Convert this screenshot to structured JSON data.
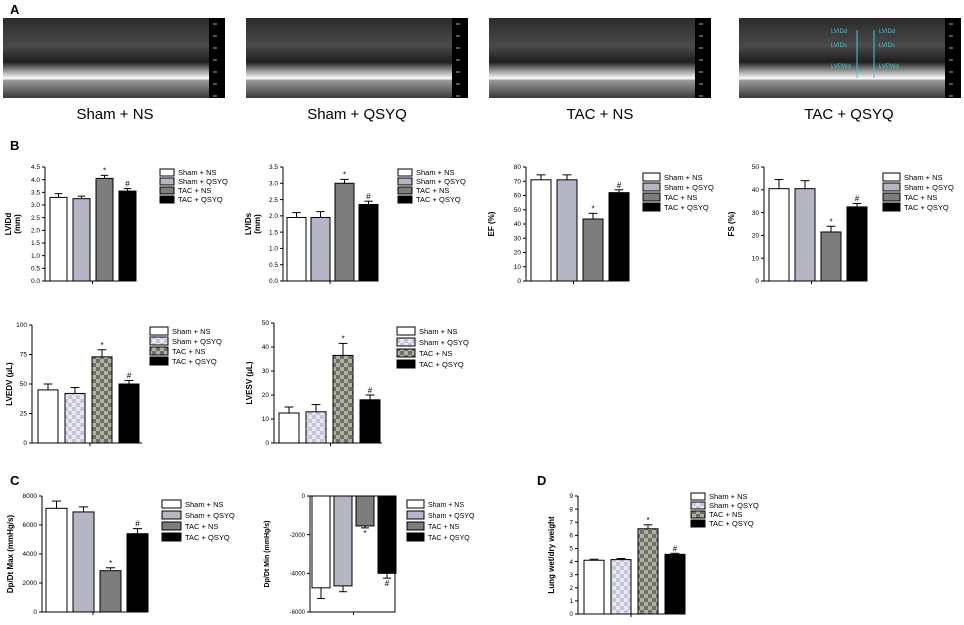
{
  "panels": {
    "a": "A",
    "b": "B",
    "c": "C",
    "d": "D"
  },
  "echo_panels": [
    {
      "title": "Sham + NS"
    },
    {
      "title": "Sham + QSYQ"
    },
    {
      "title": "TAC + NS"
    },
    {
      "title": "TAC + QSYQ",
      "overlay_labels": [
        "LVIDd",
        "LVIDs",
        "LVIDs",
        "LVIDd",
        "LVPWd",
        "LVPWd"
      ]
    }
  ],
  "colors": {
    "sham_ns": "#ffffff",
    "sham_qsyq": "#b4b6c4",
    "tac_ns": "#7d7d7d",
    "tac_qsyq": "#000000"
  },
  "chart_data": [
    {
      "type": "bar",
      "ylabel": "LVIDd\n(mm)",
      "ylim": [
        0,
        4.5
      ],
      "ticks": [
        "0.0",
        "0.5",
        "1.0",
        "1.5",
        "2.0",
        "2.5",
        "3.0",
        "3.5",
        "4.0",
        "4.5"
      ],
      "categories": [
        "Sham + NS",
        "Sham + QSYQ",
        "TAC + NS",
        "TAC + QSYQ"
      ],
      "values": [
        3.3,
        3.25,
        4.05,
        3.55
      ],
      "errors": [
        0.15,
        0.1,
        0.12,
        0.1
      ],
      "marks": [
        "",
        "",
        "*",
        "#"
      ],
      "legend": [
        "Sham + NS",
        "Sham + QSYQ",
        "TAC + NS",
        "TAC + QSYQ"
      ]
    },
    {
      "type": "bar",
      "ylabel": "LVIDs\n(mm)",
      "ylim": [
        0,
        3.5
      ],
      "ticks": [
        "0.0",
        "0.5",
        "1.0",
        "1.5",
        "2.0",
        "2.5",
        "3.0",
        "3.5"
      ],
      "categories": [
        "Sham + NS",
        "Sham + QSYQ",
        "TAC + NS",
        "TAC + QSYQ"
      ],
      "values": [
        1.95,
        1.95,
        3.0,
        2.35
      ],
      "errors": [
        0.15,
        0.18,
        0.12,
        0.1
      ],
      "marks": [
        "",
        "",
        "*",
        "#"
      ],
      "legend": [
        "Sham + NS",
        "Sham + QSYQ",
        "TAC + NS",
        "TAC + QSYQ"
      ]
    },
    {
      "type": "bar",
      "ylabel": "EF (%)",
      "ylim": [
        0,
        80
      ],
      "ticks": [
        "0",
        "10",
        "20",
        "30",
        "40",
        "50",
        "60",
        "70",
        "80"
      ],
      "categories": [
        "Sham + NS",
        "Sham + QSYQ",
        "TAC + NS",
        "TAC + QSYQ"
      ],
      "values": [
        71,
        71,
        43.5,
        62
      ],
      "errors": [
        3.5,
        3.5,
        4,
        2
      ],
      "marks": [
        "",
        "",
        "*",
        "#"
      ],
      "legend": [
        "Sham + NS",
        "Sham + QSYQ",
        "TAC + NS",
        "TAC + QSYQ"
      ]
    },
    {
      "type": "bar",
      "ylabel": "FS (%)",
      "ylim": [
        0,
        50
      ],
      "ticks": [
        "0",
        "10",
        "20",
        "30",
        "40",
        "50"
      ],
      "categories": [
        "Sham + NS",
        "Sham + QSYQ",
        "TAC + NS",
        "TAC + QSYQ"
      ],
      "values": [
        40.5,
        40.5,
        21.5,
        32.5
      ],
      "errors": [
        4,
        3.5,
        2.5,
        1.5
      ],
      "marks": [
        "",
        "",
        "*",
        "#"
      ],
      "legend": [
        "Sham + NS",
        "Sham + QSYQ",
        "TAC + NS",
        "TAC + QSYQ"
      ]
    },
    {
      "type": "bar",
      "ylabel": "LVEDV (μL)",
      "ylim": [
        0,
        100
      ],
      "ticks": [
        "0",
        "25",
        "50",
        "75",
        "100"
      ],
      "categories": [
        "Sham + NS",
        "Sham + QSYQ",
        "TAC + NS",
        "TAC + QSYQ"
      ],
      "values": [
        45,
        42,
        73,
        50
      ],
      "errors": [
        5,
        5,
        6,
        3
      ],
      "marks": [
        "",
        "",
        "*",
        "#"
      ],
      "legend": [
        "Sham + NS",
        "Sham + QSYQ",
        "TAC + NS",
        "TAC + QSYQ"
      ]
    },
    {
      "type": "bar",
      "ylabel": "LVESV (μL)",
      "ylim": [
        0,
        50
      ],
      "ticks": [
        "0",
        "10",
        "20",
        "30",
        "40",
        "50"
      ],
      "categories": [
        "Sham + NS",
        "Sham + QSYQ",
        "TAC + NS",
        "TAC + QSYQ"
      ],
      "values": [
        12.5,
        13,
        36.5,
        18
      ],
      "errors": [
        2.5,
        3,
        5,
        2
      ],
      "marks": [
        "",
        "",
        "*",
        "#"
      ],
      "legend": [
        "Sham + NS",
        "Sham + QSYQ",
        "TAC + NS",
        "TAC + QSYQ"
      ]
    },
    {
      "type": "bar",
      "ylabel": "Dp/Dt Max (mmHg/s)",
      "ylim": [
        0,
        8000
      ],
      "ticks": [
        "0",
        "2000",
        "4000",
        "6000",
        "8000"
      ],
      "categories": [
        "Sham + NS",
        "Sham + QSYQ",
        "TAC + NS",
        "TAC + QSYQ"
      ],
      "values": [
        7150,
        6900,
        2850,
        5400
      ],
      "errors": [
        500,
        350,
        200,
        350
      ],
      "marks": [
        "",
        "",
        "*",
        "#"
      ],
      "legend": [
        "Sham + NS",
        "Sham + QSYQ",
        "TAC + NS",
        "TAC + QSYQ"
      ]
    },
    {
      "type": "bar",
      "ylabel": "Dp/Dt Min (mmHg/s)",
      "ylim": [
        -6000,
        0
      ],
      "ticks": [
        "0",
        "-2000",
        "-4000",
        "-6000"
      ],
      "categories": [
        "Sham + NS",
        "Sham + QSYQ",
        "TAC + NS",
        "TAC + QSYQ"
      ],
      "values": [
        -4750,
        -4650,
        -1550,
        -4000
      ],
      "errors": [
        550,
        300,
        100,
        250
      ],
      "marks": [
        "",
        "",
        "*",
        "#"
      ],
      "legend": [
        "Sham + NS",
        "Sham + QSYQ",
        "TAC + NS",
        "TAC + QSYQ"
      ]
    },
    {
      "type": "bar",
      "ylabel": "Lung wet/dry weight",
      "ylim": [
        0,
        9
      ],
      "ticks": [
        "0",
        "1",
        "2",
        "3",
        "4",
        "5",
        "6",
        "7",
        "8",
        "9"
      ],
      "categories": [
        "Sham + NS",
        "Sham + QSYQ",
        "TAC + NS",
        "TAC + QSYQ"
      ],
      "values": [
        4.1,
        4.15,
        6.5,
        4.55
      ],
      "errors": [
        0.08,
        0.08,
        0.3,
        0.08
      ],
      "marks": [
        "",
        "",
        "*",
        "#"
      ],
      "legend": [
        "Sham + NS",
        "Sham + QSYQ",
        "TAC + NS",
        "TAC + QSYQ"
      ]
    }
  ]
}
